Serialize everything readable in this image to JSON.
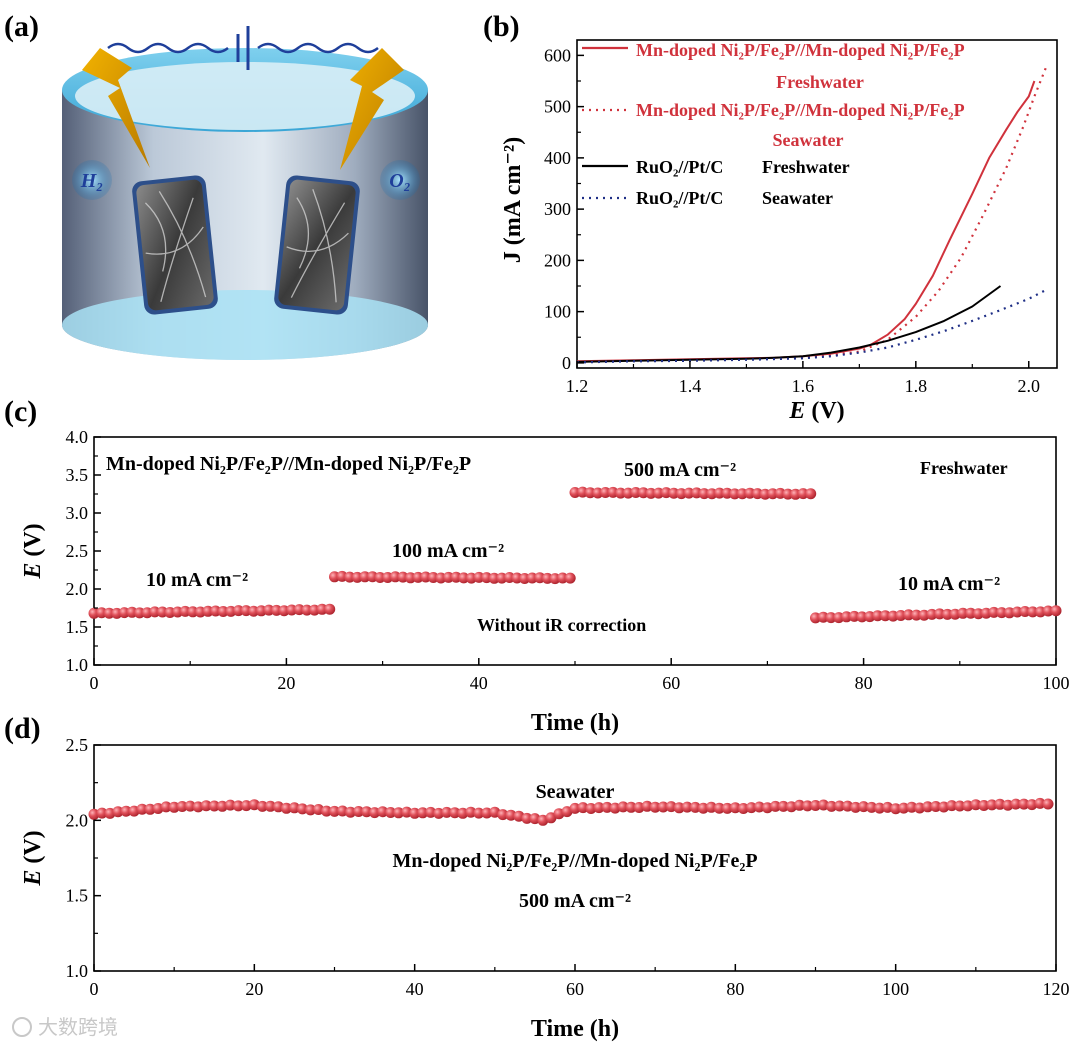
{
  "panel_labels": [
    "(a)",
    "(b)",
    "(c)",
    "(d)"
  ],
  "schematic": {
    "h2_label": "H₂",
    "o2_label": "O₂"
  },
  "watermark": "大数跨境",
  "colors": {
    "red": "#d0323c",
    "black": "#000000",
    "navy": "#1f2f86",
    "bead": "#e0505a",
    "bead_dark": "#a8202a"
  },
  "chart_data": [
    {
      "panel": "b",
      "type": "line",
      "xlabel_italic": "E",
      "xlabel_unit": " (V)",
      "ylabel": "J (mA cm⁻²)",
      "xlim": [
        1.2,
        2.05
      ],
      "ylim": [
        -10,
        630
      ],
      "xticks": [
        1.2,
        1.4,
        1.6,
        1.8,
        2.0
      ],
      "xtick_labels": [
        "1.2",
        "1.4",
        "1.6",
        "1.8",
        "2.0"
      ],
      "yticks": [
        0,
        100,
        200,
        300,
        400,
        500,
        600
      ],
      "ytick_labels": [
        "0",
        "100",
        "200",
        "300",
        "400",
        "500",
        "600"
      ],
      "legend": [
        {
          "line1": "Mn-doped Ni₂P/Fe₂P//Mn-doped Ni₂P/Fe₂P",
          "line2": "Freshwater"
        },
        {
          "line1": "Mn-doped Ni₂P/Fe₂P//Mn-doped Ni₂P/Fe₂P",
          "line2": "Seawater"
        },
        {
          "line1": "RuO₂//Pt/C",
          "line2": "Freshwater"
        },
        {
          "line1": "RuO₂//Pt/C",
          "line2": "Seawater"
        }
      ],
      "series": [
        {
          "name": "Mn-doped Ni2P/Fe2P//Mn-doped Ni2P/Fe2P Freshwater",
          "style": "solid",
          "color": "#d0323c",
          "x": [
            1.2,
            1.3,
            1.4,
            1.5,
            1.55,
            1.6,
            1.65,
            1.7,
            1.72,
            1.75,
            1.78,
            1.8,
            1.83,
            1.86,
            1.9,
            1.93,
            1.96,
            1.98,
            2.0,
            2.01
          ],
          "y": [
            3,
            5,
            7,
            9,
            10,
            13,
            18,
            28,
            35,
            55,
            85,
            115,
            170,
            240,
            330,
            400,
            455,
            490,
            520,
            550
          ]
        },
        {
          "name": "Mn-doped Ni2P/Fe2P//Mn-doped Ni2P/Fe2P Seawater",
          "style": "dotted",
          "color": "#d0323c",
          "x": [
            1.2,
            1.3,
            1.4,
            1.5,
            1.55,
            1.6,
            1.65,
            1.7,
            1.75,
            1.8,
            1.84,
            1.88,
            1.92,
            1.96,
            1.99,
            2.01,
            2.03
          ],
          "y": [
            2,
            4,
            5,
            7,
            9,
            11,
            15,
            22,
            45,
            90,
            140,
            205,
            290,
            380,
            460,
            520,
            575
          ]
        },
        {
          "name": "RuO2//Pt/C Freshwater",
          "style": "solid",
          "color": "#000000",
          "x": [
            1.2,
            1.3,
            1.4,
            1.5,
            1.55,
            1.6,
            1.65,
            1.7,
            1.75,
            1.8,
            1.85,
            1.9,
            1.95
          ],
          "y": [
            2,
            4,
            6,
            8,
            10,
            13,
            20,
            30,
            43,
            60,
            82,
            110,
            150
          ]
        },
        {
          "name": "RuO2//Pt/C Seawater",
          "style": "dotted",
          "color": "#1f2f86",
          "x": [
            1.2,
            1.3,
            1.4,
            1.5,
            1.6,
            1.65,
            1.7,
            1.75,
            1.8,
            1.85,
            1.9,
            1.95,
            2.0,
            2.03
          ],
          "y": [
            1,
            3,
            4,
            6,
            9,
            13,
            20,
            30,
            45,
            62,
            82,
            103,
            125,
            142
          ]
        }
      ]
    },
    {
      "panel": "c",
      "type": "scatter",
      "xlabel": "Time (h)",
      "ylabel_italic": "E",
      "ylabel_unit": " (V)",
      "xlim": [
        0,
        100
      ],
      "ylim": [
        1.0,
        4.0
      ],
      "xticks": [
        0,
        20,
        40,
        60,
        80,
        100
      ],
      "xtick_labels": [
        "0",
        "20",
        "40",
        "60",
        "80",
        "100"
      ],
      "yticks": [
        1.0,
        1.5,
        2.0,
        2.5,
        3.0,
        3.5,
        4.0
      ],
      "ytick_labels": [
        "1.0",
        "1.5",
        "2.0",
        "2.5",
        "3.0",
        "3.5",
        "4.0"
      ],
      "annotations": {
        "sample": "Mn-doped Ni₂P/Fe₂P//Mn-doped Ni₂P/Fe₂P",
        "medium": "Freshwater",
        "note": "Without iR correction",
        "seg1": "10 mA cm⁻²",
        "seg2": "100 mA cm⁻²",
        "seg3": "500 mA cm⁻²",
        "seg4": "10 mA cm⁻²"
      },
      "segments": [
        {
          "label": "10 mA cm-2",
          "t_start": 0,
          "t_end": 24.5,
          "v_start": 1.68,
          "v_end": 1.73
        },
        {
          "label": "100 mA cm-2",
          "t_start": 25,
          "t_end": 49.5,
          "v_start": 2.16,
          "v_end": 2.14
        },
        {
          "label": "500 mA cm-2",
          "t_start": 50,
          "t_end": 74.5,
          "v_start": 3.27,
          "v_end": 3.25
        },
        {
          "label": "10 mA cm-2",
          "t_start": 75,
          "t_end": 100,
          "v_start": 1.62,
          "v_end": 1.71
        }
      ]
    },
    {
      "panel": "d",
      "type": "scatter",
      "xlabel": "Time (h)",
      "ylabel_italic": "E",
      "ylabel_unit": " (V)",
      "xlim": [
        0,
        120
      ],
      "ylim": [
        1.0,
        2.5
      ],
      "xticks": [
        0,
        20,
        40,
        60,
        80,
        100,
        120
      ],
      "xtick_labels": [
        "0",
        "20",
        "40",
        "60",
        "80",
        "100",
        "120"
      ],
      "yticks": [
        1.0,
        1.5,
        2.0,
        2.5
      ],
      "ytick_labels": [
        "1.0",
        "1.5",
        "2.0",
        "2.5"
      ],
      "annotations": {
        "medium": "Seawater",
        "sample": "Mn-doped Ni₂P/Fe₂P//Mn-doped Ni₂P/Fe₂P",
        "current": "500 mA cm⁻²"
      },
      "t": [
        0,
        10,
        20,
        30,
        40,
        50,
        56,
        60,
        70,
        80,
        90,
        100,
        110,
        119
      ],
      "v": [
        2.04,
        2.09,
        2.1,
        2.06,
        2.05,
        2.05,
        2.0,
        2.08,
        2.09,
        2.08,
        2.1,
        2.08,
        2.1,
        2.11
      ]
    }
  ]
}
